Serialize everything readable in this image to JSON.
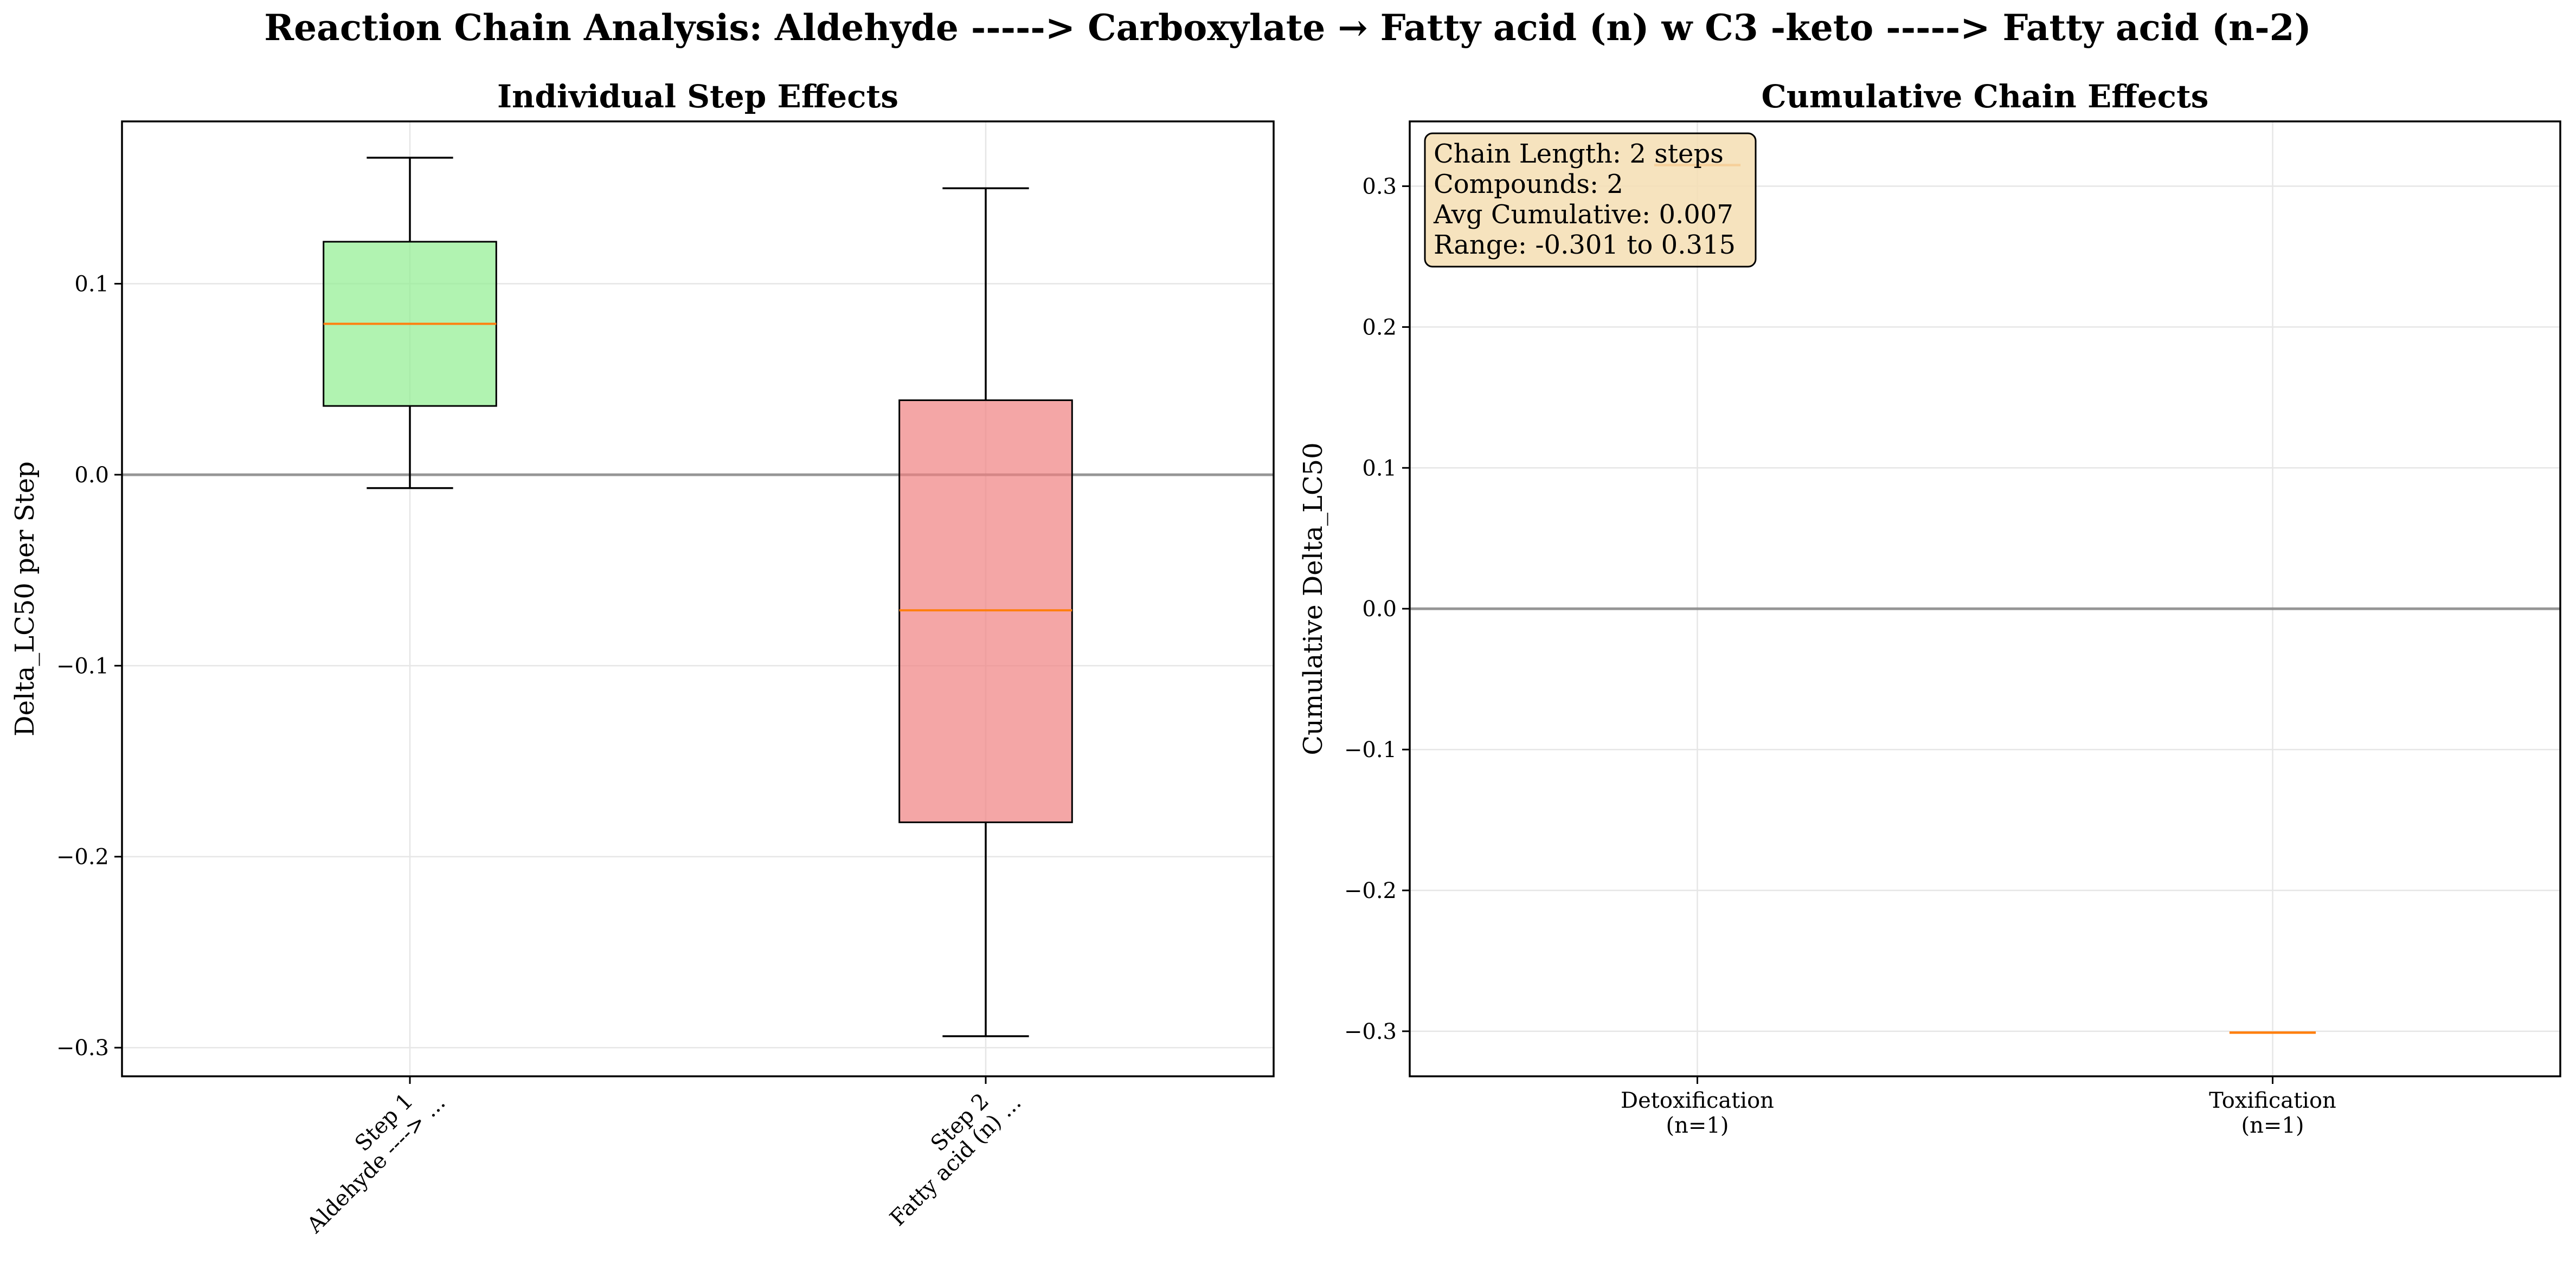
{
  "figure": {
    "title": "Reaction Chain Analysis: Aldehyde -----> Carboxylate → Fatty acid (n) w C3 -keto -----> Fatty acid (n-2)"
  },
  "chart_data": [
    {
      "type": "box",
      "title": "Individual Step Effects",
      "xlabel": "",
      "ylabel": "Delta_LC50 per Step",
      "ylim": [
        -0.315,
        0.185
      ],
      "yticks": [
        -0.3,
        -0.2,
        -0.1,
        0.0,
        0.1
      ],
      "ytick_labels": [
        "−0.3",
        "−0.2",
        "−0.1",
        "0.0",
        "0.1"
      ],
      "grid": true,
      "reference_line": 0.0,
      "boxes": [
        {
          "label_line1": "Step 1",
          "label_line2": "Aldehyde ----> ...",
          "whislo": -0.007,
          "q1": 0.036,
          "med": 0.079,
          "q3": 0.122,
          "whishi": 0.166,
          "color": "#90ee90"
        },
        {
          "label_line1": "Step 2",
          "label_line2": "Fatty acid (n) ...",
          "whislo": -0.294,
          "q1": -0.182,
          "med": -0.071,
          "q3": 0.039,
          "whishi": 0.15,
          "color": "#f08080"
        }
      ]
    },
    {
      "type": "box",
      "title": "Cumulative Chain Effects",
      "xlabel": "",
      "ylabel": "Cumulative Delta_LC50",
      "ylim": [
        -0.332,
        0.346
      ],
      "yticks": [
        -0.3,
        -0.2,
        -0.1,
        0.0,
        0.1,
        0.2,
        0.3
      ],
      "ytick_labels": [
        "−0.3",
        "−0.2",
        "−0.1",
        "0.0",
        "0.1",
        "0.2",
        "0.3"
      ],
      "grid": true,
      "reference_line": 0.0,
      "boxes": [
        {
          "label_line1": "Detoxification",
          "label_line2": "(n=1)",
          "value": 0.315
        },
        {
          "label_line1": "Toxification",
          "label_line2": "(n=1)",
          "value": -0.301
        }
      ],
      "info_box": {
        "lines": [
          "Chain Length: 2 steps",
          "Compounds: 2",
          "Avg Cumulative: 0.007",
          "Range: -0.301 to 0.315"
        ],
        "position": "top-left",
        "color": "#f5deb3"
      }
    }
  ],
  "colors": {
    "median": "#ff7f0e",
    "reference_line": "#808080",
    "grid": "#e6e6e6",
    "axis": "#000000"
  }
}
